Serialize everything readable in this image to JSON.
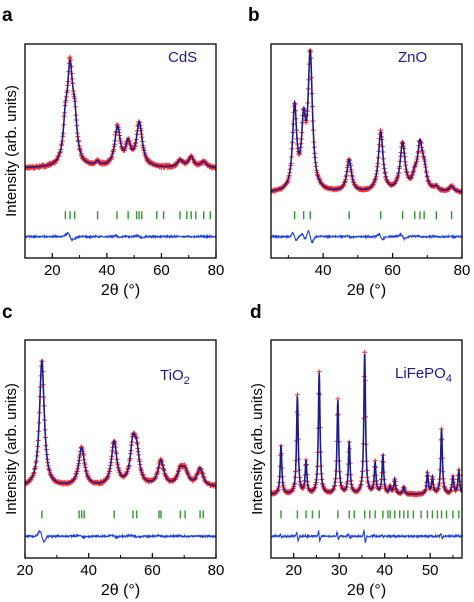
{
  "chart_data": [
    {
      "panel": "a",
      "type": "line",
      "material": "CdS",
      "xlabel": "2θ (°)",
      "ylabel": "Intensity (arb. units)",
      "xlim": [
        10,
        80
      ],
      "xticks": [
        20,
        40,
        60,
        80
      ],
      "background": 0.22,
      "peaks": [
        [
          26.5,
          0.63,
          1.2
        ],
        [
          28.2,
          0.25,
          1.0
        ],
        [
          24.8,
          0.22,
          0.9
        ],
        [
          36.6,
          0.03,
          0.8
        ],
        [
          43.9,
          0.27,
          1.2
        ],
        [
          47.8,
          0.15,
          1.1
        ],
        [
          51.9,
          0.3,
          1.3
        ],
        [
          66.9,
          0.05,
          1.2
        ],
        [
          70.9,
          0.07,
          1.2
        ],
        [
          75.5,
          0.04,
          1.2
        ]
      ],
      "bragg_ticks": [
        24.8,
        26.5,
        28.2,
        36.6,
        43.7,
        47.8,
        50.9,
        51.8,
        52.8,
        58.3,
        60.8,
        66.8,
        69.3,
        70.9,
        72.6,
        75.5,
        77.9
      ],
      "series": [
        {
          "name": "Observed",
          "style": "red crosses"
        },
        {
          "name": "Calculated",
          "style": "dark blue line"
        },
        {
          "name": "Difference",
          "style": "blue line"
        }
      ]
    },
    {
      "panel": "b",
      "type": "line",
      "material": "ZnO",
      "xlabel": "2θ (°)",
      "ylabel": "",
      "xlim": [
        25,
        80
      ],
      "xticks": [
        40,
        60,
        80
      ],
      "background": 0.05,
      "peaks": [
        [
          31.8,
          0.57,
          0.7
        ],
        [
          34.4,
          0.42,
          0.7
        ],
        [
          36.3,
          0.92,
          0.75
        ],
        [
          47.5,
          0.22,
          0.8
        ],
        [
          56.6,
          0.41,
          0.8
        ],
        [
          62.9,
          0.33,
          0.85
        ],
        [
          66.4,
          0.08,
          0.8
        ],
        [
          67.9,
          0.3,
          0.85
        ],
        [
          69.1,
          0.12,
          0.8
        ],
        [
          72.6,
          0.03,
          0.8
        ],
        [
          77.0,
          0.04,
          0.8
        ]
      ],
      "bragg_ticks": [
        31.8,
        34.4,
        36.3,
        47.5,
        56.6,
        62.9,
        66.4,
        67.9,
        69.1,
        72.6,
        77.0
      ],
      "series": [
        {
          "name": "Observed",
          "style": "red crosses"
        },
        {
          "name": "Calculated",
          "style": "dark blue line"
        },
        {
          "name": "Difference",
          "style": "blue line"
        }
      ]
    },
    {
      "panel": "c",
      "type": "line",
      "material": "TiO",
      "material_sub": "2",
      "xlabel": "2θ (°)",
      "ylabel": "Intensity (arb. units)",
      "xlim": [
        20,
        80
      ],
      "xticks": [
        20,
        40,
        60,
        80
      ],
      "background": 0.08,
      "peaks": [
        [
          25.3,
          0.85,
          0.9
        ],
        [
          37.8,
          0.26,
          1.1
        ],
        [
          48.0,
          0.3,
          1.0
        ],
        [
          53.9,
          0.26,
          1.0
        ],
        [
          55.1,
          0.2,
          1.0
        ],
        [
          62.7,
          0.17,
          1.1
        ],
        [
          68.8,
          0.1,
          1.1
        ],
        [
          70.3,
          0.09,
          1.1
        ],
        [
          75.0,
          0.12,
          1.1
        ]
      ],
      "bragg_ticks": [
        25.3,
        37.0,
        37.8,
        38.6,
        48.0,
        53.9,
        55.1,
        62.1,
        62.7,
        68.8,
        70.3,
        75.0,
        76.0
      ],
      "series": [
        {
          "name": "Observed",
          "style": "red crosses"
        },
        {
          "name": "Calculated",
          "style": "dark blue line"
        },
        {
          "name": "Difference",
          "style": "blue line"
        }
      ]
    },
    {
      "panel": "d",
      "type": "line",
      "material": "LiFePO",
      "material_sub": "4",
      "xlabel": "2θ (°)",
      "ylabel": "Intensity (arb. units)",
      "xlim": [
        15,
        57
      ],
      "xticks": [
        20,
        30,
        40,
        50
      ],
      "background": 0.03,
      "peaks": [
        [
          17.2,
          0.33,
          0.22
        ],
        [
          20.8,
          0.66,
          0.22
        ],
        [
          22.7,
          0.22,
          0.22
        ],
        [
          25.6,
          0.82,
          0.22
        ],
        [
          29.7,
          0.63,
          0.22
        ],
        [
          32.2,
          0.35,
          0.22
        ],
        [
          35.6,
          0.95,
          0.22
        ],
        [
          37.9,
          0.21,
          0.22
        ],
        [
          39.6,
          0.26,
          0.22
        ],
        [
          41.2,
          0.05,
          0.22
        ],
        [
          42.2,
          0.1,
          0.22
        ],
        [
          44.2,
          0.05,
          0.22
        ],
        [
          49.4,
          0.14,
          0.22
        ],
        [
          50.5,
          0.11,
          0.22
        ],
        [
          52.5,
          0.44,
          0.22
        ],
        [
          55.0,
          0.12,
          0.22
        ],
        [
          56.3,
          0.16,
          0.22
        ]
      ],
      "bragg_ticks": [
        17.2,
        20.8,
        22.7,
        24.1,
        25.6,
        29.7,
        32.2,
        33.3,
        35.6,
        36.7,
        37.9,
        39.6,
        40.7,
        41.2,
        42.2,
        43.3,
        44.2,
        45.1,
        46.3,
        48.0,
        49.4,
        50.5,
        51.6,
        52.5,
        53.6,
        55.0,
        56.3
      ],
      "series": [
        {
          "name": "Observed",
          "style": "red crosses"
        },
        {
          "name": "Calculated",
          "style": "dark blue line"
        },
        {
          "name": "Difference",
          "style": "blue line"
        }
      ]
    }
  ],
  "colors": {
    "observed": "#ff2a2a",
    "calculated": "#1c1c8c",
    "difference": "#1f3fe0",
    "bragg": "#2e9a2e",
    "material_label": "#1a1a8c",
    "axis": "#000000"
  }
}
